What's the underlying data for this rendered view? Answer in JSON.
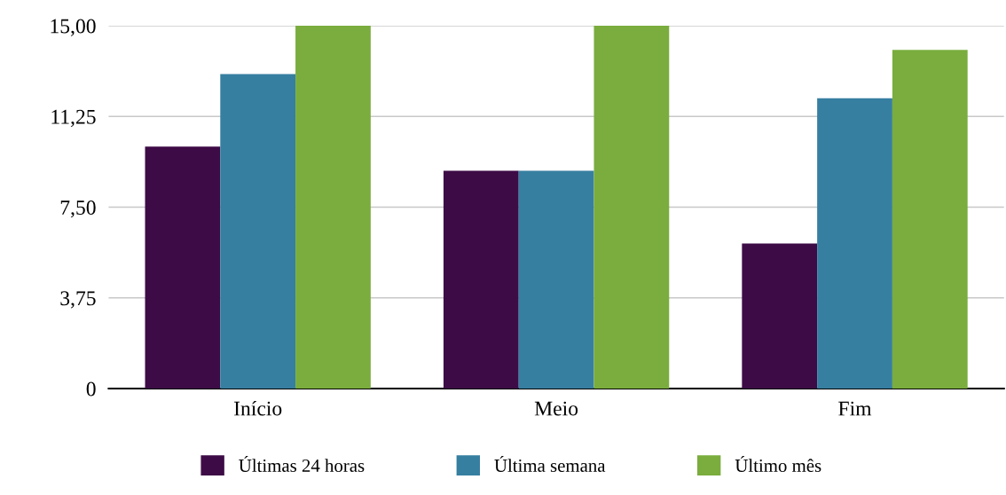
{
  "chart_data": {
    "type": "bar",
    "categories": [
      "Início",
      "Meio",
      "Fim"
    ],
    "series": [
      {
        "name": "Últimas 24 horas",
        "color": "#3d0b46",
        "values": [
          10,
          9,
          6
        ]
      },
      {
        "name": "Última semana",
        "color": "#367fa1",
        "values": [
          13,
          9,
          12
        ]
      },
      {
        "name": "Último mês",
        "color": "#7aad3d",
        "values": [
          15,
          15,
          14
        ]
      }
    ],
    "ylim": [
      0,
      15
    ],
    "yticks": [
      {
        "value": 0,
        "label": "0"
      },
      {
        "value": 3.75,
        "label": "3,75"
      },
      {
        "value": 7.5,
        "label": "7,50"
      },
      {
        "value": 11.25,
        "label": "11,25"
      },
      {
        "value": 15,
        "label": "15,00"
      }
    ],
    "grid": "y",
    "legend": "bottom"
  }
}
